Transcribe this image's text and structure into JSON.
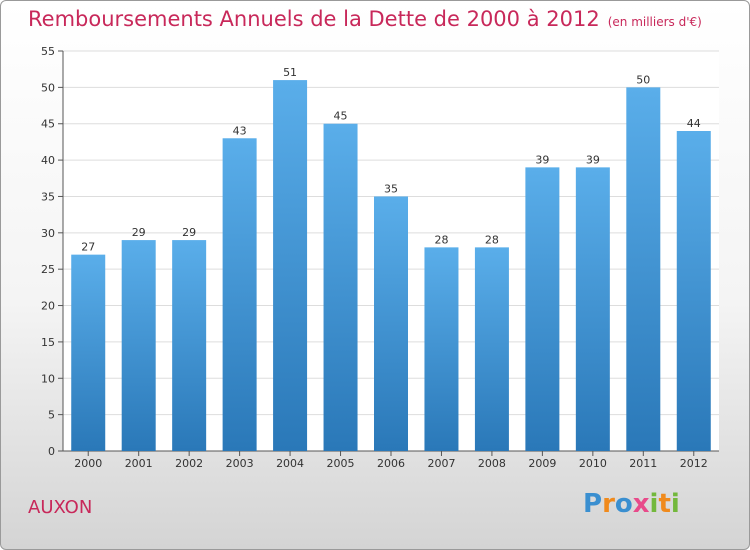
{
  "header": {
    "title": "Remboursements Annuels de la Dette de 2000 à 2012",
    "unit": "(en milliers d'€)"
  },
  "footer": {
    "commune": "AUXON",
    "logo_text": "Proxiti"
  },
  "colors": {
    "title": "#c8285a",
    "bar_top": "#5aaeea",
    "bar_bottom": "#2a78b8",
    "grid": "#dddddd"
  },
  "chart_data": {
    "type": "bar",
    "categories": [
      "2000",
      "2001",
      "2002",
      "2003",
      "2004",
      "2005",
      "2006",
      "2007",
      "2008",
      "2009",
      "2010",
      "2011",
      "2012"
    ],
    "values": [
      27,
      29,
      29,
      43,
      51,
      45,
      35,
      28,
      28,
      39,
      39,
      50,
      44
    ],
    "title": "Remboursements Annuels de la Dette de 2000 à 2012",
    "subtitle": "(en milliers d'€)",
    "ylim": [
      0,
      55
    ],
    "yticks": [
      0,
      5,
      10,
      15,
      20,
      25,
      30,
      35,
      40,
      45,
      50,
      55
    ],
    "grid": true,
    "data_labels": true
  }
}
